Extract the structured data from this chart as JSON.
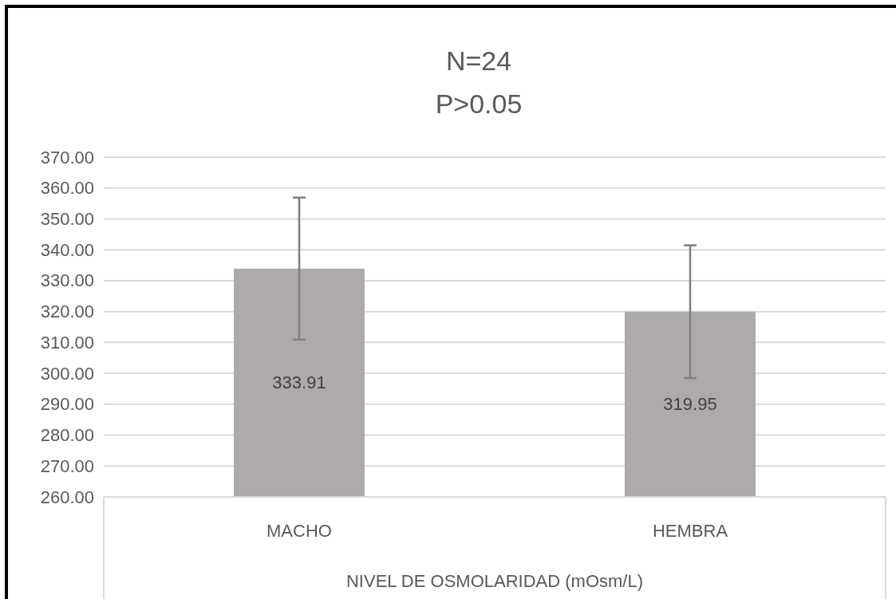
{
  "chart_data": {
    "type": "bar",
    "title": "N=24",
    "subtitle": "P>0.05",
    "xlabel": "NIVEL DE OSMOLARIDAD (mOsm/L)",
    "categories": [
      "MACHO",
      "HEMBRA"
    ],
    "values": [
      333.91,
      319.95
    ],
    "errors": [
      23,
      21.5
    ],
    "color": "#aeaaaa",
    "data_labels": true,
    "ylim": [
      260,
      370
    ],
    "yticks": [
      {
        "value": 260,
        "label": "260.00"
      },
      {
        "value": 270,
        "label": "270.00"
      },
      {
        "value": 280,
        "label": "280.00"
      },
      {
        "value": 290,
        "label": "290.00"
      },
      {
        "value": 300,
        "label": "300.00"
      },
      {
        "value": 310,
        "label": "310.00"
      },
      {
        "value": 320,
        "label": "320.00"
      },
      {
        "value": 330,
        "label": "330.00"
      },
      {
        "value": 340,
        "label": "340.00"
      },
      {
        "value": 350,
        "label": "350.00"
      },
      {
        "value": 360,
        "label": "360.00"
      },
      {
        "value": 370,
        "label": "370.00"
      }
    ],
    "grid": "y"
  }
}
